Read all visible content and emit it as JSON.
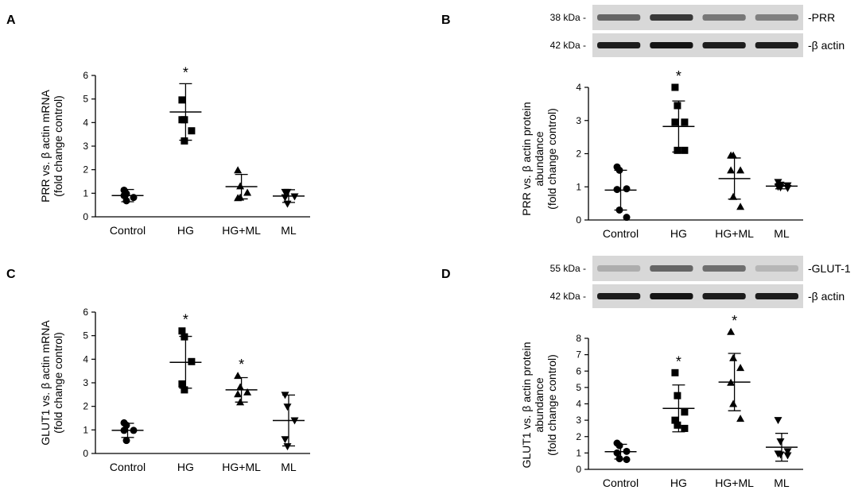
{
  "chart_data": [
    {
      "panel": "A",
      "type": "scatter",
      "ylabel": [
        "PRR vs. β actin mRNA",
        "(fold change control)"
      ],
      "xlabel": "",
      "categories": [
        "Control",
        "HG",
        "HG+ML",
        "ML"
      ],
      "ylim": [
        0,
        6
      ],
      "yticks": [
        0,
        1,
        2,
        3,
        4,
        5,
        6
      ],
      "markers": [
        "circle",
        "square",
        "triangle-up",
        "triangle-down"
      ],
      "points": [
        [
          1.13,
          0.98,
          0.82,
          0.9,
          0.68
        ],
        [
          4.96,
          4.12,
          3.65,
          4.12,
          3.22
        ],
        [
          1.98,
          1.3,
          1.03,
          0.8,
          0.82
        ],
        [
          1.05,
          1.05,
          0.86,
          0.82,
          0.55
        ]
      ],
      "mean": [
        0.9,
        4.45,
        1.28,
        0.88
      ],
      "sd": [
        0.26,
        1.2,
        0.52,
        0.27
      ],
      "significant": [
        false,
        true,
        false,
        false
      ],
      "significance_mark": "*",
      "grid": false
    },
    {
      "panel": "B",
      "type": "scatter",
      "ylabel": [
        "PRR vs. β actin protein",
        "abundance",
        "(fold change control)"
      ],
      "xlabel": "",
      "categories": [
        "Control",
        "HG",
        "HG+ML",
        "ML"
      ],
      "ylim": [
        0,
        4
      ],
      "yticks": [
        0,
        1,
        2,
        3,
        4
      ],
      "markers": [
        "circle",
        "square",
        "triangle-up",
        "triangle-down"
      ],
      "points": [
        [
          1.6,
          1.5,
          0.94,
          0.92,
          0.3,
          0.08
        ],
        [
          4.0,
          3.45,
          2.95,
          2.95,
          2.1,
          2.1
        ],
        [
          1.95,
          1.95,
          1.5,
          1.5,
          0.7,
          0.4
        ],
        [
          1.14,
          1.06,
          1.04,
          1.0,
          0.98,
          0.96
        ]
      ],
      "mean": [
        0.9,
        2.82,
        1.25,
        1.02
      ],
      "sd": [
        0.6,
        0.77,
        0.62,
        0.08
      ],
      "significant": [
        false,
        true,
        false,
        false
      ],
      "significance_mark": "*",
      "grid": false,
      "blot": {
        "rows": [
          {
            "marker": "38 kDa -",
            "label": "-PRR",
            "intensity": [
              0.55,
              0.8,
              0.45,
              0.4
            ]
          },
          {
            "marker": "42 kDa -",
            "label": "-β actin",
            "intensity": [
              0.95,
              1.0,
              0.95,
              0.95
            ]
          }
        ]
      }
    },
    {
      "panel": "C",
      "type": "scatter",
      "ylabel": [
        "GLUT1 vs. β actin mRNA",
        "(fold change control)"
      ],
      "xlabel": "",
      "categories": [
        "Control",
        "HG",
        "HG+ML",
        "ML"
      ],
      "ylim": [
        0,
        6
      ],
      "yticks": [
        0,
        1,
        2,
        3,
        4,
        5,
        6
      ],
      "markers": [
        "circle",
        "square",
        "triangle-up",
        "triangle-down"
      ],
      "points": [
        [
          1.3,
          1.2,
          0.98,
          0.98,
          0.55
        ],
        [
          5.2,
          4.95,
          3.9,
          2.95,
          2.7
        ],
        [
          3.3,
          2.82,
          2.6,
          2.52,
          2.18
        ],
        [
          2.48,
          1.98,
          1.4,
          0.6,
          0.3
        ]
      ],
      "mean": [
        0.98,
        3.87,
        2.7,
        1.4
      ],
      "sd": [
        0.3,
        1.1,
        0.52,
        1.08
      ],
      "significant": [
        false,
        true,
        true,
        false
      ],
      "significance_mark": "*",
      "grid": false
    },
    {
      "panel": "D",
      "type": "scatter",
      "ylabel": [
        "GLUT1 vs. β actin protein",
        "abundance",
        "(fold change control)"
      ],
      "xlabel": "",
      "categories": [
        "Control",
        "HG",
        "HG+ML",
        "ML"
      ],
      "ylim": [
        0,
        8
      ],
      "yticks": [
        0,
        1,
        2,
        3,
        4,
        5,
        6,
        7,
        8
      ],
      "markers": [
        "circle",
        "square",
        "triangle-up",
        "triangle-down"
      ],
      "points": [
        [
          1.6,
          1.45,
          1.1,
          1.0,
          0.65,
          0.6
        ],
        [
          5.9,
          4.5,
          3.5,
          3.0,
          2.7,
          2.5
        ],
        [
          8.4,
          6.8,
          6.2,
          5.3,
          4.0,
          3.1
        ],
        [
          3.0,
          1.7,
          1.1,
          0.95,
          0.9,
          0.85
        ]
      ],
      "mean": [
        1.08,
        3.72,
        5.33,
        1.35
      ],
      "sd": [
        0.45,
        1.43,
        1.75,
        0.85
      ],
      "significant": [
        false,
        true,
        true,
        false
      ],
      "significance_mark": "*",
      "grid": false,
      "blot": {
        "rows": [
          {
            "marker": "55 kDa -",
            "label": "-GLUT-1",
            "intensity": [
              0.15,
              0.55,
              0.5,
              0.1
            ]
          },
          {
            "marker": "42 kDa -",
            "label": "-β actin",
            "intensity": [
              0.95,
              1.0,
              0.95,
              0.95
            ]
          }
        ]
      }
    }
  ]
}
